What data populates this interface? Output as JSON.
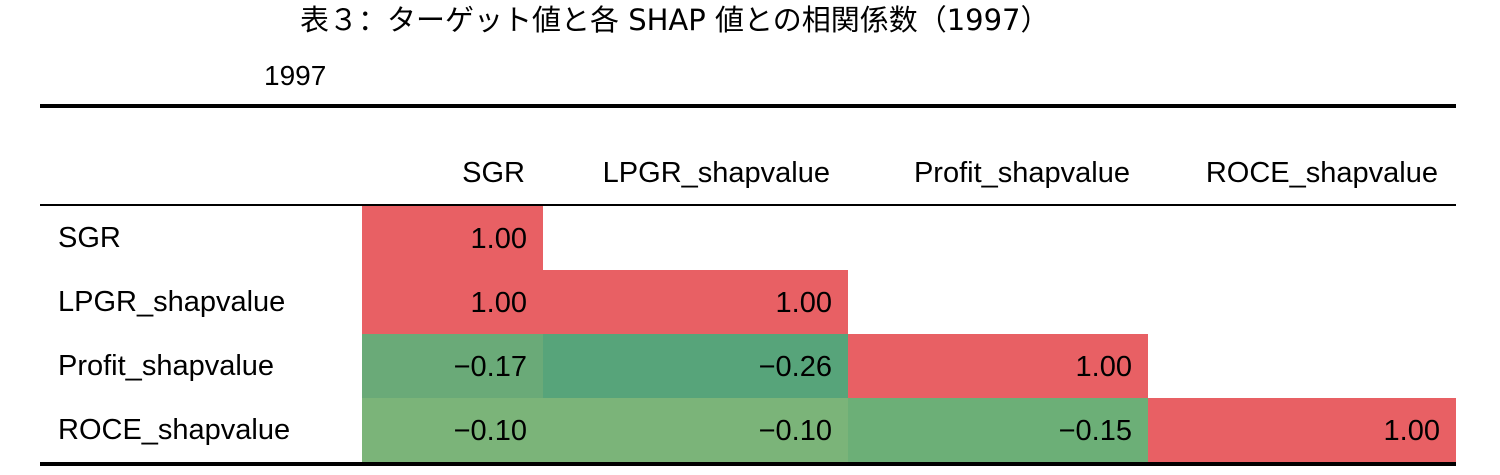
{
  "title": "表３：ターゲット値と各 SHAP 値との相関係数（1997）",
  "year_label": "1997",
  "chart_data": {
    "type": "heatmap",
    "title": "表３：ターゲット値と各 SHAP 値との相関係数（1997）",
    "subtitle": "1997",
    "columns": [
      "SGR",
      "LPGR_shapvalue",
      "Profit_shapvalue",
      "ROCE_shapvalue"
    ],
    "rows": [
      "SGR",
      "LPGR_shapvalue",
      "Profit_shapvalue",
      "ROCE_shapvalue"
    ],
    "values": [
      [
        1.0,
        null,
        null,
        null
      ],
      [
        1.0,
        1.0,
        null,
        null
      ],
      [
        -0.17,
        -0.26,
        1.0,
        null
      ],
      [
        -0.1,
        -0.1,
        -0.15,
        1.0
      ]
    ],
    "labels": [
      [
        "1.00",
        "",
        "",
        ""
      ],
      [
        "1.00",
        "1.00",
        "",
        ""
      ],
      [
        "−0.17",
        "−0.26",
        "1.00",
        ""
      ],
      [
        "−0.10",
        "−0.10",
        "−0.15",
        "1.00"
      ]
    ],
    "colors": [
      [
        "#e86064",
        null,
        null,
        null
      ],
      [
        "#e86064",
        "#e86064",
        null,
        null
      ],
      [
        "#6aaa78",
        "#57a47a",
        "#e86064",
        null
      ],
      [
        "#7bb479",
        "#7bb479",
        "#6caf77",
        "#e86064"
      ]
    ]
  }
}
